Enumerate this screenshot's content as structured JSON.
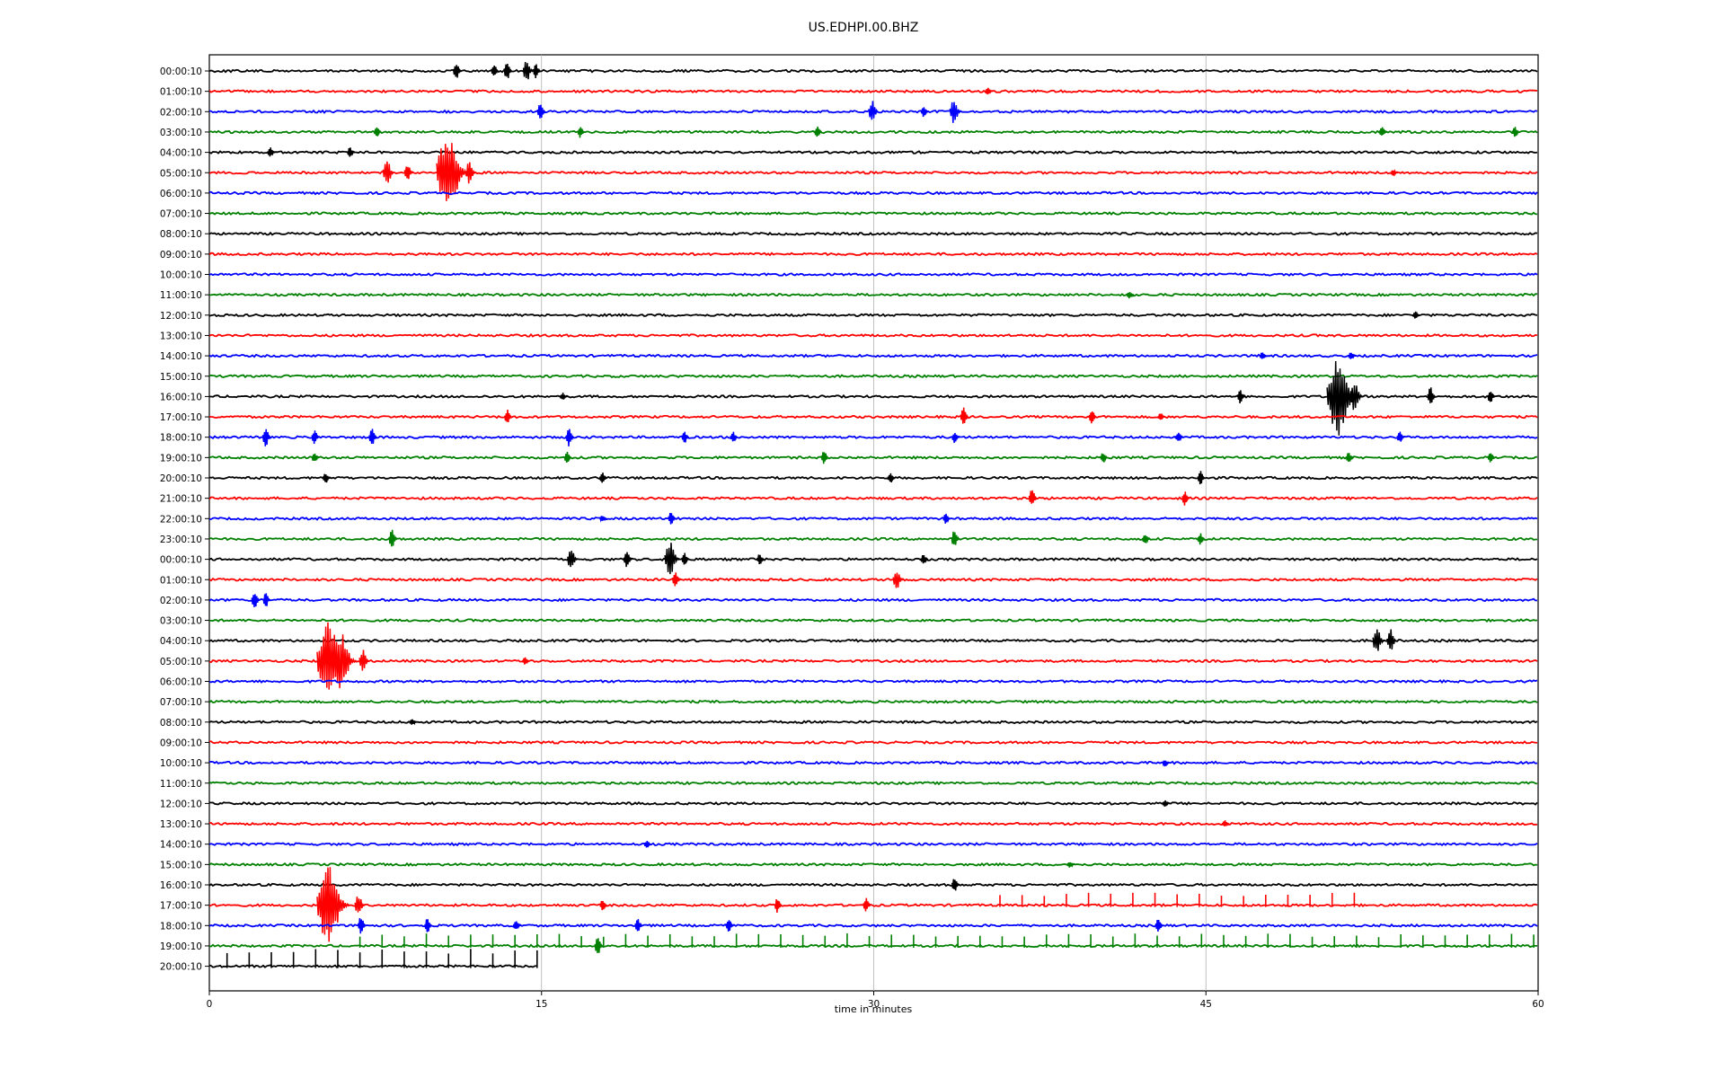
{
  "chart_data": {
    "type": "line",
    "title": "US.EDHPI.00.BHZ",
    "xlabel": "time in minutes",
    "ylabel": "",
    "xlim": [
      0,
      60
    ],
    "x_ticks": [
      "0",
      "15",
      "30",
      "45",
      "60"
    ],
    "grid": "vertical lines at 15, 30, 45",
    "color_cycle": [
      "#000000",
      "#ff0000",
      "#0000ff",
      "#008000"
    ],
    "series": [
      {
        "label": "00:00:10",
        "events": [
          {
            "t": 11.2,
            "amp": 0.5
          },
          {
            "t": 12.9,
            "amp": 0.4
          },
          {
            "t": 13.5,
            "amp": 0.5
          },
          {
            "t": 14.4,
            "amp": 0.6
          },
          {
            "t": 14.8,
            "amp": 0.4
          }
        ]
      },
      {
        "label": "01:00:10",
        "events": [
          {
            "t": 35.2,
            "amp": 0.2
          }
        ]
      },
      {
        "label": "02:00:10",
        "events": [
          {
            "t": 15.0,
            "amp": 0.5
          },
          {
            "t": 30.0,
            "amp": 0.6
          },
          {
            "t": 32.3,
            "amp": 0.3
          },
          {
            "t": 33.7,
            "amp": 0.7
          }
        ]
      },
      {
        "label": "03:00:10",
        "events": [
          {
            "t": 7.6,
            "amp": 0.3
          },
          {
            "t": 16.8,
            "amp": 0.3
          },
          {
            "t": 27.5,
            "amp": 0.3
          },
          {
            "t": 53.0,
            "amp": 0.3
          },
          {
            "t": 59.0,
            "amp": 0.3
          }
        ]
      },
      {
        "label": "04:00:10",
        "events": [
          {
            "t": 2.8,
            "amp": 0.3
          },
          {
            "t": 6.4,
            "amp": 0.3
          }
        ]
      },
      {
        "label": "05:00:10",
        "events": [
          {
            "t": 8.1,
            "amp": 0.7
          },
          {
            "t": 9.0,
            "amp": 0.5
          },
          {
            "t": 11.0,
            "amp": 2.0
          },
          {
            "t": 11.8,
            "amp": 0.6
          },
          {
            "t": 53.5,
            "amp": 0.2
          }
        ]
      },
      {
        "label": "06:00:10",
        "events": []
      },
      {
        "label": "07:00:10",
        "events": []
      },
      {
        "label": "08:00:10",
        "events": []
      },
      {
        "label": "09:00:10",
        "events": []
      },
      {
        "label": "10:00:10",
        "events": []
      },
      {
        "label": "11:00:10",
        "events": [
          {
            "t": 41.6,
            "amp": 0.2
          }
        ]
      },
      {
        "label": "12:00:10",
        "events": [
          {
            "t": 54.5,
            "amp": 0.2
          }
        ]
      },
      {
        "label": "13:00:10",
        "events": []
      },
      {
        "label": "14:00:10",
        "events": [
          {
            "t": 47.6,
            "amp": 0.2
          },
          {
            "t": 51.6,
            "amp": 0.2
          }
        ]
      },
      {
        "label": "15:00:10",
        "events": []
      },
      {
        "label": "16:00:10",
        "events": [
          {
            "t": 16.0,
            "amp": 0.2
          },
          {
            "t": 46.6,
            "amp": 0.4
          },
          {
            "t": 51.2,
            "amp": 2.0
          },
          {
            "t": 51.8,
            "amp": 0.8
          },
          {
            "t": 55.2,
            "amp": 0.5
          },
          {
            "t": 57.9,
            "amp": 0.4
          }
        ]
      },
      {
        "label": "17:00:10",
        "events": [
          {
            "t": 13.5,
            "amp": 0.4
          },
          {
            "t": 34.1,
            "amp": 0.5
          },
          {
            "t": 39.9,
            "amp": 0.4
          },
          {
            "t": 43.0,
            "amp": 0.2
          }
        ]
      },
      {
        "label": "18:00:10",
        "events": [
          {
            "t": 2.6,
            "amp": 0.5
          },
          {
            "t": 4.8,
            "amp": 0.4
          },
          {
            "t": 7.4,
            "amp": 0.5
          },
          {
            "t": 16.3,
            "amp": 0.5
          },
          {
            "t": 21.5,
            "amp": 0.4
          },
          {
            "t": 23.7,
            "amp": 0.3
          },
          {
            "t": 33.7,
            "amp": 0.3
          },
          {
            "t": 43.8,
            "amp": 0.3
          },
          {
            "t": 53.8,
            "amp": 0.3
          }
        ]
      },
      {
        "label": "19:00:10",
        "events": [
          {
            "t": 4.8,
            "amp": 0.3
          },
          {
            "t": 16.2,
            "amp": 0.3
          },
          {
            "t": 27.8,
            "amp": 0.4
          },
          {
            "t": 40.4,
            "amp": 0.3
          },
          {
            "t": 51.5,
            "amp": 0.3
          },
          {
            "t": 57.9,
            "amp": 0.3
          }
        ]
      },
      {
        "label": "20:00:10",
        "events": [
          {
            "t": 5.3,
            "amp": 0.3
          },
          {
            "t": 17.8,
            "amp": 0.3
          },
          {
            "t": 30.8,
            "amp": 0.3
          },
          {
            "t": 44.8,
            "amp": 0.4
          }
        ]
      },
      {
        "label": "21:00:10",
        "events": [
          {
            "t": 37.2,
            "amp": 0.5
          },
          {
            "t": 44.1,
            "amp": 0.4
          }
        ]
      },
      {
        "label": "22:00:10",
        "events": [
          {
            "t": 17.8,
            "amp": 0.2
          },
          {
            "t": 20.9,
            "amp": 0.4
          },
          {
            "t": 33.3,
            "amp": 0.3
          }
        ]
      },
      {
        "label": "23:00:10",
        "events": [
          {
            "t": 8.3,
            "amp": 0.5
          },
          {
            "t": 33.7,
            "amp": 0.5
          },
          {
            "t": 42.3,
            "amp": 0.3
          },
          {
            "t": 44.8,
            "amp": 0.3
          }
        ]
      },
      {
        "label": "00:00:10",
        "events": [
          {
            "t": 16.4,
            "amp": 0.6
          },
          {
            "t": 18.9,
            "amp": 0.5
          },
          {
            "t": 20.9,
            "amp": 0.9
          },
          {
            "t": 21.5,
            "amp": 0.4
          },
          {
            "t": 24.9,
            "amp": 0.3
          },
          {
            "t": 32.3,
            "amp": 0.3
          }
        ]
      },
      {
        "label": "01:00:10",
        "events": [
          {
            "t": 21.1,
            "amp": 0.5
          },
          {
            "t": 31.1,
            "amp": 0.6
          }
        ]
      },
      {
        "label": "02:00:10",
        "events": [
          {
            "t": 2.1,
            "amp": 0.5
          },
          {
            "t": 2.6,
            "amp": 0.4
          }
        ]
      },
      {
        "label": "03:00:10",
        "events": []
      },
      {
        "label": "04:00:10",
        "events": [
          {
            "t": 52.8,
            "amp": 0.7
          },
          {
            "t": 53.4,
            "amp": 0.6
          }
        ]
      },
      {
        "label": "05:00:10",
        "events": [
          {
            "t": 5.6,
            "amp": 2.0
          },
          {
            "t": 6.1,
            "amp": 1.5
          },
          {
            "t": 7.0,
            "amp": 0.6
          },
          {
            "t": 14.3,
            "amp": 0.2
          }
        ]
      },
      {
        "label": "06:00:10",
        "events": []
      },
      {
        "label": "07:00:10",
        "events": []
      },
      {
        "label": "08:00:10",
        "events": [
          {
            "t": 9.2,
            "amp": 0.2
          }
        ]
      },
      {
        "label": "09:00:10",
        "events": []
      },
      {
        "label": "10:00:10",
        "events": [
          {
            "t": 43.2,
            "amp": 0.2
          }
        ]
      },
      {
        "label": "11:00:10",
        "events": []
      },
      {
        "label": "12:00:10",
        "events": [
          {
            "t": 43.2,
            "amp": 0.2
          }
        ]
      },
      {
        "label": "13:00:10",
        "events": [
          {
            "t": 45.9,
            "amp": 0.2
          }
        ]
      },
      {
        "label": "14:00:10",
        "events": [
          {
            "t": 19.8,
            "amp": 0.2
          }
        ]
      },
      {
        "label": "15:00:10",
        "events": [
          {
            "t": 38.9,
            "amp": 0.2
          }
        ]
      },
      {
        "label": "16:00:10",
        "events": [
          {
            "t": 33.7,
            "amp": 0.4
          }
        ]
      },
      {
        "label": "17:00:10",
        "events": [
          {
            "t": 5.6,
            "amp": 2.0
          },
          {
            "t": 6.8,
            "amp": 0.6
          },
          {
            "t": 17.8,
            "amp": 0.3
          },
          {
            "t": 25.7,
            "amp": 0.4
          },
          {
            "t": 29.7,
            "amp": 0.4
          }
        ]
      },
      {
        "label": "18:00:10",
        "events": [
          {
            "t": 6.9,
            "amp": 0.5
          },
          {
            "t": 9.9,
            "amp": 0.4
          },
          {
            "t": 13.9,
            "amp": 0.3
          },
          {
            "t": 19.4,
            "amp": 0.4
          },
          {
            "t": 23.5,
            "amp": 0.4
          },
          {
            "t": 42.9,
            "amp": 0.4
          }
        ]
      },
      {
        "label": "19:00:10",
        "events": [
          {
            "t": 17.6,
            "amp": 0.5
          }
        ]
      },
      {
        "label": "20:00:10",
        "events": []
      }
    ],
    "last_trace_end_minutes": 14.8,
    "tick_spike_rows": [
      {
        "row": 41,
        "start": 35.7,
        "end": 52.0,
        "step": 1.0,
        "amp": 0.55
      },
      {
        "row": 43,
        "start": 6.8,
        "end": 60.0,
        "step": 1.0,
        "amp": 0.55
      },
      {
        "row": 44,
        "start": 0.8,
        "end": 14.8,
        "step": 1.0,
        "amp": 0.8
      }
    ]
  }
}
